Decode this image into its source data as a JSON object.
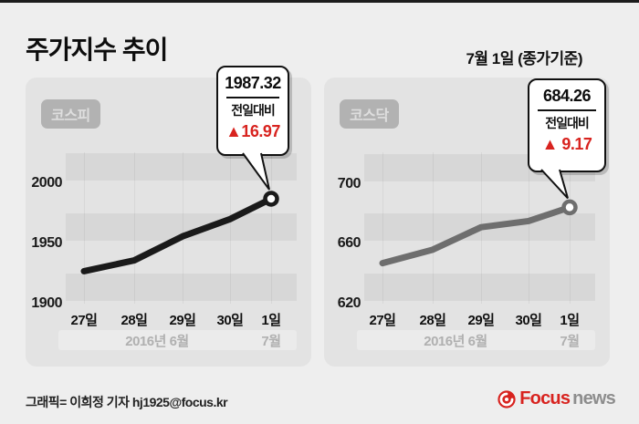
{
  "page": {
    "title": "주가지수 추이",
    "date_note": "7월 1일 (종가기준)",
    "footer_credit": "그래픽= 이희정 기자 hj1925@focus.kr",
    "logo": {
      "brand_primary": "Focus",
      "brand_secondary": "news"
    }
  },
  "colors": {
    "accent_red": "#d8231f",
    "page_bg": "#eeeeee",
    "panel_bg": "#e3e3e3",
    "stripe": "#d7d7d7",
    "kospi_line": "#1a1a1a",
    "kosdaq_line": "#6e6e6e"
  },
  "chart_data": [
    {
      "type": "line",
      "index_name": "코스피",
      "categories": [
        "27일",
        "28일",
        "29일",
        "30일",
        "1일"
      ],
      "values": [
        1927,
        1936,
        1956,
        1970.35,
        1987.32
      ],
      "ytick_labels": [
        "2000",
        "1950",
        "1900"
      ],
      "ytick_values": [
        2000,
        1950,
        1900
      ],
      "ylim": [
        1900,
        2026
      ],
      "x_period_labels": [
        {
          "label": "2016년 6월",
          "from": 0,
          "to": 3
        },
        {
          "label": "7월",
          "from": 4,
          "to": 4
        }
      ],
      "line_color": "#1a1a1a",
      "callout": {
        "value": "1987.32",
        "label": "전일대비",
        "change": "▲16.97",
        "direction": "up"
      }
    },
    {
      "type": "line",
      "index_name": "코스닥",
      "categories": [
        "27일",
        "28일",
        "29일",
        "30일",
        "1일"
      ],
      "values": [
        647,
        656,
        671,
        675.09,
        684.26
      ],
      "ytick_labels": [
        "700",
        "660",
        "620"
      ],
      "ytick_values": [
        700,
        660,
        620
      ],
      "ylim": [
        620,
        721
      ],
      "x_period_labels": [
        {
          "label": "2016년 6월",
          "from": 0,
          "to": 3
        },
        {
          "label": "7월",
          "from": 4,
          "to": 4
        }
      ],
      "line_color": "#6e6e6e",
      "callout": {
        "value": "684.26",
        "label": "전일대비",
        "change": "▲ 9.17",
        "direction": "up"
      }
    }
  ]
}
